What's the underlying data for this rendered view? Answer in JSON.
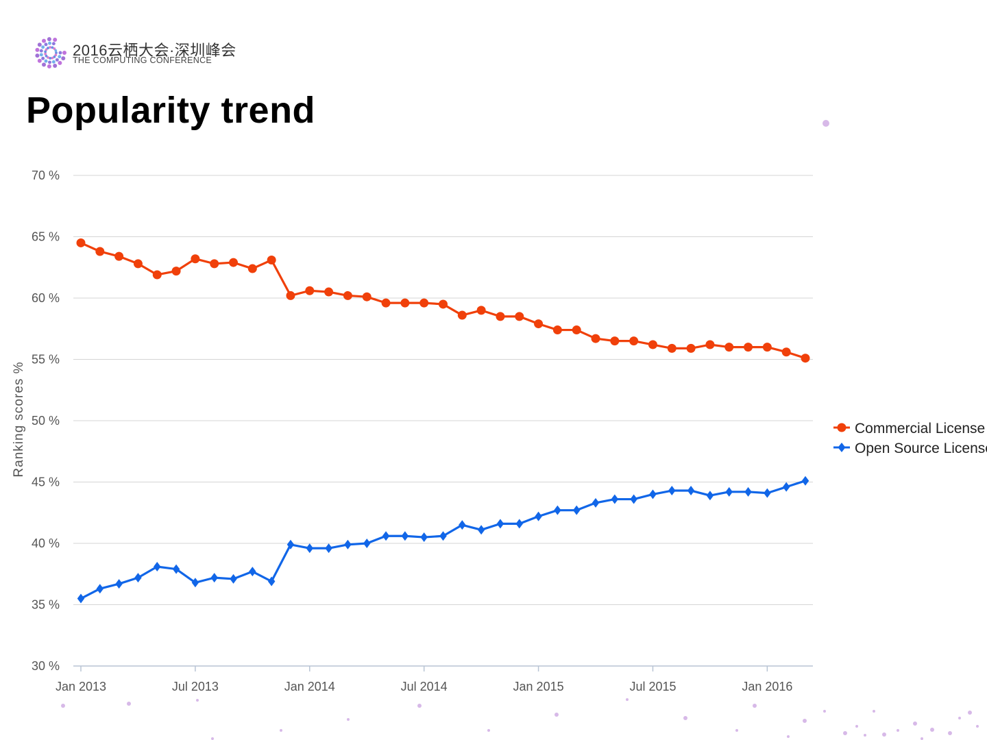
{
  "header": {
    "logo_cn": "2016云栖大会·深圳峰会",
    "logo_en": "THE COMPUTING CONFERENCE",
    "title": "Popularity trend"
  },
  "chart_data": {
    "type": "line",
    "title": "Popularity trend",
    "xlabel": "",
    "ylabel": "Ranking scores %",
    "ylim": [
      30,
      70
    ],
    "yticks": [
      30,
      35,
      40,
      45,
      50,
      55,
      60,
      65,
      70
    ],
    "ytick_labels": [
      "30 %",
      "35 %",
      "40 %",
      "45 %",
      "50 %",
      "55 %",
      "60 %",
      "65 %",
      "70 %"
    ],
    "xtick_indices": [
      0,
      6,
      12,
      18,
      24,
      30,
      36
    ],
    "xtick_labels": [
      "Jan 2013",
      "Jul 2013",
      "Jan 2014",
      "Jul 2014",
      "Jan 2015",
      "Jul 2015",
      "Jan 2016"
    ],
    "x_count": 39,
    "grid": true,
    "legend_position": "right",
    "series": [
      {
        "name": "Commercial License",
        "marker": "circle",
        "color": "#f0400a",
        "values": [
          64.5,
          63.8,
          63.4,
          62.8,
          61.9,
          62.2,
          63.2,
          62.8,
          62.9,
          62.4,
          63.1,
          60.2,
          60.6,
          60.5,
          60.2,
          60.1,
          59.6,
          59.6,
          59.6,
          59.5,
          58.6,
          59.0,
          58.5,
          58.5,
          57.9,
          57.4,
          57.4,
          56.7,
          56.5,
          56.5,
          56.2,
          55.9,
          55.9,
          56.2,
          56.0,
          56.0,
          56.0,
          55.6,
          55.1
        ]
      },
      {
        "name": "Open Source License",
        "marker": "diamond",
        "color": "#1166e8",
        "values": [
          35.5,
          36.3,
          36.7,
          37.2,
          38.1,
          37.9,
          36.8,
          37.2,
          37.1,
          37.7,
          36.9,
          39.9,
          39.6,
          39.6,
          39.9,
          40.0,
          40.6,
          40.6,
          40.5,
          40.6,
          41.5,
          41.1,
          41.6,
          41.6,
          42.2,
          42.7,
          42.7,
          43.3,
          43.6,
          43.6,
          44.0,
          44.3,
          44.3,
          43.9,
          44.2,
          44.2,
          44.1,
          44.6,
          45.1
        ]
      }
    ]
  }
}
